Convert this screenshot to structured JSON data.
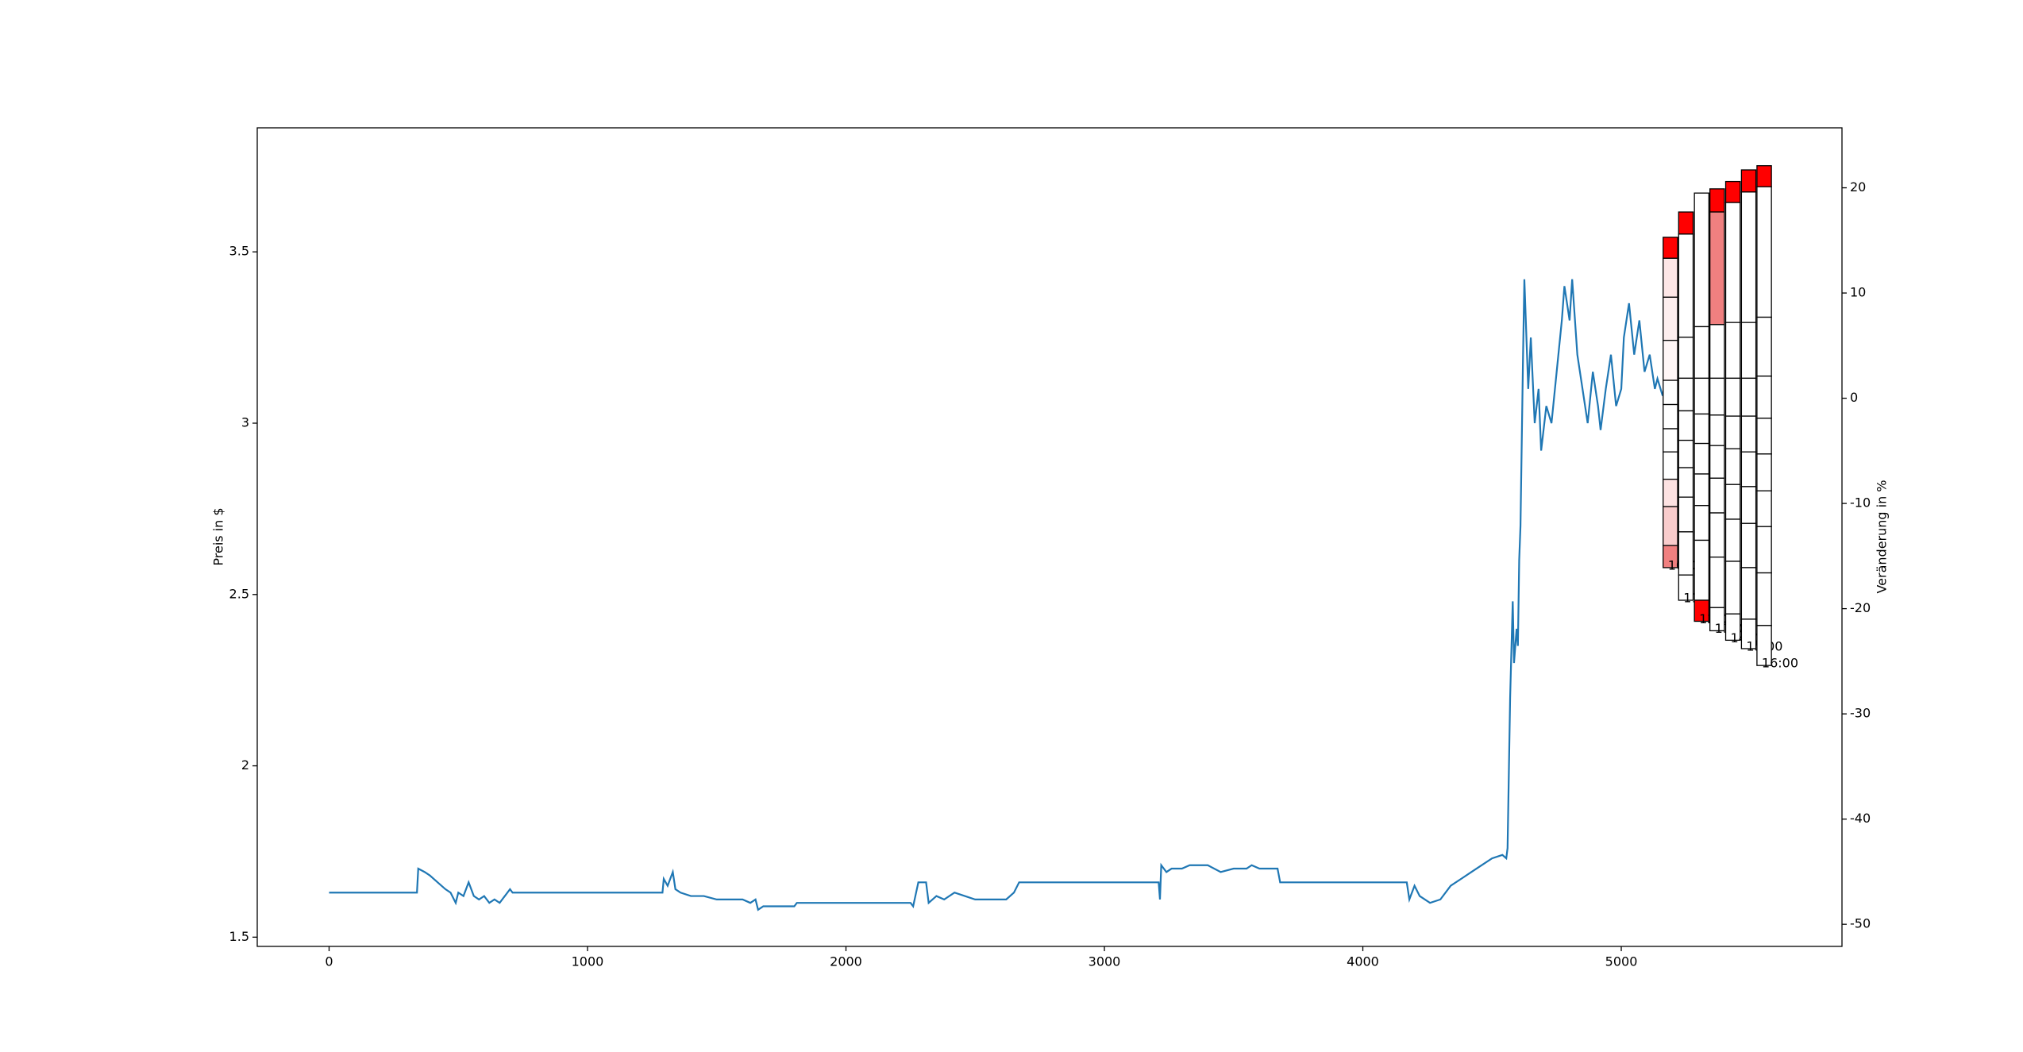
{
  "chart_data": {
    "type": "line",
    "ylabel": "Preis in $",
    "y2label": "Veränderung in %",
    "xlim": [
      -278,
      5854
    ],
    "ylim": [
      1.473,
      3.862
    ],
    "y2lim": [
      -52.1,
      25.7
    ],
    "xticks": [
      0,
      1000,
      2000,
      3000,
      4000,
      5000
    ],
    "yticks": [
      1.5,
      2.0,
      2.5,
      3.0,
      3.5
    ],
    "y2ticks": [
      -50,
      -40,
      -30,
      -20,
      -10,
      0,
      10,
      20
    ],
    "x": [
      0,
      340,
      345,
      370,
      390,
      420,
      450,
      470,
      490,
      500,
      520,
      540,
      560,
      580,
      600,
      620,
      640,
      660,
      680,
      700,
      710,
      1290,
      1295,
      1310,
      1330,
      1340,
      1360,
      1400,
      1450,
      1500,
      1550,
      1600,
      1630,
      1650,
      1660,
      1680,
      1800,
      1810,
      2250,
      2260,
      2280,
      2310,
      2320,
      2350,
      2380,
      2420,
      2460,
      2500,
      2620,
      2650,
      2670,
      3210,
      3215,
      3220,
      3240,
      3260,
      3300,
      3330,
      3400,
      3450,
      3500,
      3550,
      3570,
      3600,
      3670,
      3680,
      4170,
      4180,
      4200,
      4220,
      4260,
      4300,
      4340,
      4380,
      4420,
      4460,
      4500,
      4540,
      4555,
      4560,
      4570,
      4580,
      4585,
      4595,
      4600,
      4605,
      4610,
      4620,
      4625,
      4640,
      4650,
      4665,
      4680,
      4690,
      4710,
      4730,
      4750,
      4770,
      4780,
      4800,
      4810,
      4830,
      4850,
      4870,
      4890,
      4910,
      4920,
      4940,
      4960,
      4980,
      5000,
      5010,
      5030,
      5050,
      5070,
      5090,
      5110,
      5130,
      5140,
      5160,
      5170
    ],
    "series": [
      {
        "color": "#1f77b4",
        "values": [
          1.63,
          1.63,
          1.7,
          1.69,
          1.68,
          1.66,
          1.64,
          1.63,
          1.6,
          1.63,
          1.62,
          1.66,
          1.62,
          1.61,
          1.62,
          1.6,
          1.61,
          1.6,
          1.62,
          1.64,
          1.63,
          1.63,
          1.67,
          1.65,
          1.69,
          1.64,
          1.63,
          1.62,
          1.62,
          1.61,
          1.61,
          1.61,
          1.6,
          1.61,
          1.58,
          1.59,
          1.59,
          1.6,
          1.6,
          1.59,
          1.66,
          1.66,
          1.6,
          1.62,
          1.61,
          1.63,
          1.62,
          1.61,
          1.61,
          1.63,
          1.66,
          1.66,
          1.61,
          1.71,
          1.69,
          1.7,
          1.7,
          1.71,
          1.71,
          1.69,
          1.7,
          1.7,
          1.71,
          1.7,
          1.7,
          1.66,
          1.66,
          1.61,
          1.65,
          1.62,
          1.6,
          1.61,
          1.65,
          1.67,
          1.69,
          1.71,
          1.73,
          1.74,
          1.73,
          1.76,
          2.2,
          2.48,
          2.3,
          2.4,
          2.35,
          2.6,
          2.7,
          3.2,
          3.42,
          3.1,
          3.25,
          3.0,
          3.1,
          2.92,
          3.05,
          3.0,
          3.15,
          3.3,
          3.4,
          3.3,
          3.42,
          3.2,
          3.1,
          3.0,
          3.15,
          3.05,
          2.98,
          3.1,
          3.2,
          3.05,
          3.1,
          3.25,
          3.35,
          3.2,
          3.3,
          3.15,
          3.2,
          3.1,
          3.13,
          3.08,
          3.12
        ]
      }
    ],
    "profiles": [
      {
        "label": "10:00",
        "x": [
          5162,
          5218
        ],
        "edges": [
          15.3,
          13.3,
          9.6,
          5.5,
          1.7,
          -0.6,
          -2.9,
          -5.1,
          -7.7,
          -10.3,
          -14.0,
          -16.1
        ],
        "colors": [
          "#ff0000",
          "#fde6e6",
          "#fdeeee",
          "#fff6f6",
          "#ffffff",
          "#ffffff",
          "#ffffff",
          "#ffffff",
          "#fde2e2",
          "#f9cccc",
          "#f08080"
        ]
      },
      {
        "label": "11:00",
        "x": [
          5222,
          5278
        ],
        "edges": [
          17.7,
          15.6,
          5.8,
          1.9,
          -1.2,
          -4.0,
          -6.6,
          -9.4,
          -12.7,
          -16.8,
          -19.2
        ],
        "colors": [
          "#ff0000",
          "#ffffff",
          "#ffffff",
          "#ffffff",
          "#ffffff",
          "#ffffff",
          "#ffffff",
          "#ffffff",
          "#ffffff",
          "#ffffff"
        ]
      },
      {
        "label": "12:00",
        "x": [
          5283,
          5339
        ],
        "edges": [
          19.5,
          6.8,
          1.9,
          -1.5,
          -4.3,
          -7.2,
          -10.2,
          -13.5,
          -19.2,
          -21.2
        ],
        "colors": [
          "#ffffff",
          "#ffffff",
          "#ffffff",
          "#ffffff",
          "#ffffff",
          "#ffffff",
          "#ffffff",
          "#ffffff",
          "#ff0000"
        ]
      },
      {
        "label": "13:00",
        "x": [
          5343,
          5399
        ],
        "edges": [
          19.9,
          17.7,
          7.0,
          1.9,
          -1.6,
          -4.5,
          -7.6,
          -10.9,
          -15.1,
          -19.9,
          -22.1
        ],
        "colors": [
          "#ff0000",
          "#f08080",
          "#ffffff",
          "#ffffff",
          "#ffffff",
          "#ffffff",
          "#ffffff",
          "#ffffff",
          "#ffffff",
          "#ffffff"
        ]
      },
      {
        "label": "14:00",
        "x": [
          5404,
          5460
        ],
        "edges": [
          20.6,
          18.6,
          7.2,
          1.9,
          -1.7,
          -4.8,
          -8.2,
          -11.5,
          -15.5,
          -20.5,
          -23.0
        ],
        "colors": [
          "#ff0000",
          "#ffffff",
          "#ffffff",
          "#ffffff",
          "#ffffff",
          "#ffffff",
          "#ffffff",
          "#ffffff",
          "#ffffff",
          "#ffffff"
        ]
      },
      {
        "label": "15:00",
        "x": [
          5465,
          5521
        ],
        "edges": [
          21.7,
          19.6,
          7.2,
          1.9,
          -1.7,
          -5.1,
          -8.4,
          -11.9,
          -16.1,
          -21.0,
          -23.8
        ],
        "colors": [
          "#ff0000",
          "#ffffff",
          "#ffffff",
          "#ffffff",
          "#ffffff",
          "#ffffff",
          "#ffffff",
          "#ffffff",
          "#ffffff",
          "#ffffff"
        ]
      },
      {
        "label": "16:00",
        "x": [
          5525,
          5581
        ],
        "edges": [
          22.1,
          20.1,
          7.7,
          2.1,
          -1.9,
          -5.3,
          -8.8,
          -12.2,
          -16.6,
          -21.6,
          -25.4
        ],
        "colors": [
          "#ff0000",
          "#ffffff",
          "#ffffff",
          "#ffffff",
          "#ffffff",
          "#ffffff",
          "#ffffff",
          "#ffffff",
          "#ffffff",
          "#ffffff"
        ]
      }
    ]
  }
}
